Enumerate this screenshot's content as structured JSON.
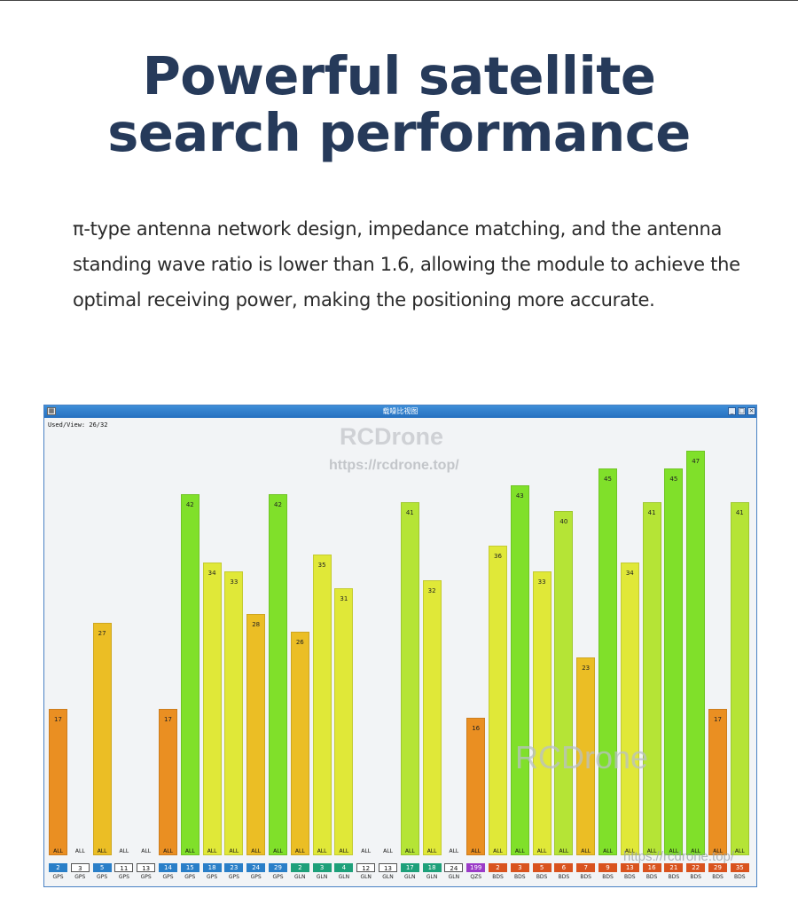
{
  "headline": {
    "line1": "Powerful satellite",
    "line2": "search performance"
  },
  "description": {
    "line1": "π-type antenna network design, impedance matching, and the antenna",
    "line2": "standing wave ratio is lower than 1.6, allowing the module to achieve the",
    "line3": "optimal receiving power, making the positioning more accurate."
  },
  "window": {
    "title": "载噪比视图",
    "status": "Used/View: 26/32",
    "controls": {
      "minimize": "_",
      "maximize": "□",
      "close": "×"
    }
  },
  "watermarks": {
    "brand_top": "RCDrone",
    "url_top": "https://rcdrone.top/",
    "brand_mid": "RCDrone",
    "url_bottom": "https://rcdrone.top/"
  },
  "colors": {
    "titlebar": "#2e7ccc",
    "gps_prn": "#2a7fc8",
    "glonass_prn": "#1ea07a",
    "qzss_prn": "#9b3bc8",
    "beidou_prn": "#d9531e",
    "inactive_prn_border": "#555555"
  },
  "chart_data": {
    "type": "bar",
    "title": "",
    "xlabel": "",
    "ylabel": "",
    "ylim": [
      0,
      50
    ],
    "satellites": [
      {
        "prn": "2",
        "system": "GPS",
        "status": "ALL",
        "cn0": 17,
        "active": true
      },
      {
        "prn": "3",
        "system": "GPS",
        "status": "ALL",
        "cn0": null,
        "active": false
      },
      {
        "prn": "5",
        "system": "GPS",
        "status": "ALL",
        "cn0": 27,
        "active": true
      },
      {
        "prn": "11",
        "system": "GPS",
        "status": "ALL",
        "cn0": null,
        "active": false
      },
      {
        "prn": "13",
        "system": "GPS",
        "status": "ALL",
        "cn0": null,
        "active": false
      },
      {
        "prn": "14",
        "system": "GPS",
        "status": "ALL",
        "cn0": 17,
        "active": true
      },
      {
        "prn": "15",
        "system": "GPS",
        "status": "ALL",
        "cn0": 42,
        "active": true
      },
      {
        "prn": "18",
        "system": "GPS",
        "status": "ALL",
        "cn0": 34,
        "active": true
      },
      {
        "prn": "23",
        "system": "GPS",
        "status": "ALL",
        "cn0": 33,
        "active": true
      },
      {
        "prn": "24",
        "system": "GPS",
        "status": "ALL",
        "cn0": 28,
        "active": true
      },
      {
        "prn": "29",
        "system": "GPS",
        "status": "ALL",
        "cn0": 42,
        "active": true
      },
      {
        "prn": "2",
        "system": "GLN",
        "status": "ALL",
        "cn0": 26,
        "active": true
      },
      {
        "prn": "3",
        "system": "GLN",
        "status": "ALL",
        "cn0": 35,
        "active": true
      },
      {
        "prn": "4",
        "system": "GLN",
        "status": "ALL",
        "cn0": 31,
        "active": true
      },
      {
        "prn": "12",
        "system": "GLN",
        "status": "ALL",
        "cn0": null,
        "active": false
      },
      {
        "prn": "13",
        "system": "GLN",
        "status": "ALL",
        "cn0": null,
        "active": false
      },
      {
        "prn": "17",
        "system": "GLN",
        "status": "ALL",
        "cn0": 41,
        "active": true
      },
      {
        "prn": "18",
        "system": "GLN",
        "status": "ALL",
        "cn0": 32,
        "active": true
      },
      {
        "prn": "24",
        "system": "GLN",
        "status": "ALL",
        "cn0": null,
        "active": false
      },
      {
        "prn": "199",
        "system": "QZS",
        "status": "ALL",
        "cn0": 16,
        "active": true
      },
      {
        "prn": "2",
        "system": "BDS",
        "status": "ALL",
        "cn0": 36,
        "active": true
      },
      {
        "prn": "3",
        "system": "BDS",
        "status": "ALL",
        "cn0": 43,
        "active": true
      },
      {
        "prn": "5",
        "system": "BDS",
        "status": "ALL",
        "cn0": 33,
        "active": true
      },
      {
        "prn": "6",
        "system": "BDS",
        "status": "ALL",
        "cn0": 40,
        "active": true
      },
      {
        "prn": "7",
        "system": "BDS",
        "status": "ALL",
        "cn0": 23,
        "active": true
      },
      {
        "prn": "9",
        "system": "BDS",
        "status": "ALL",
        "cn0": 45,
        "active": true
      },
      {
        "prn": "13",
        "system": "BDS",
        "status": "ALL",
        "cn0": 34,
        "active": true
      },
      {
        "prn": "16",
        "system": "BDS",
        "status": "ALL",
        "cn0": 41,
        "active": true
      },
      {
        "prn": "21",
        "system": "BDS",
        "status": "ALL",
        "cn0": 45,
        "active": true
      },
      {
        "prn": "22",
        "system": "BDS",
        "status": "ALL",
        "cn0": 47,
        "active": true
      },
      {
        "prn": "29",
        "system": "BDS",
        "status": "ALL",
        "cn0": 17,
        "active": true
      },
      {
        "prn": "35",
        "system": "BDS",
        "status": "ALL",
        "cn0": 41,
        "active": true
      }
    ]
  }
}
